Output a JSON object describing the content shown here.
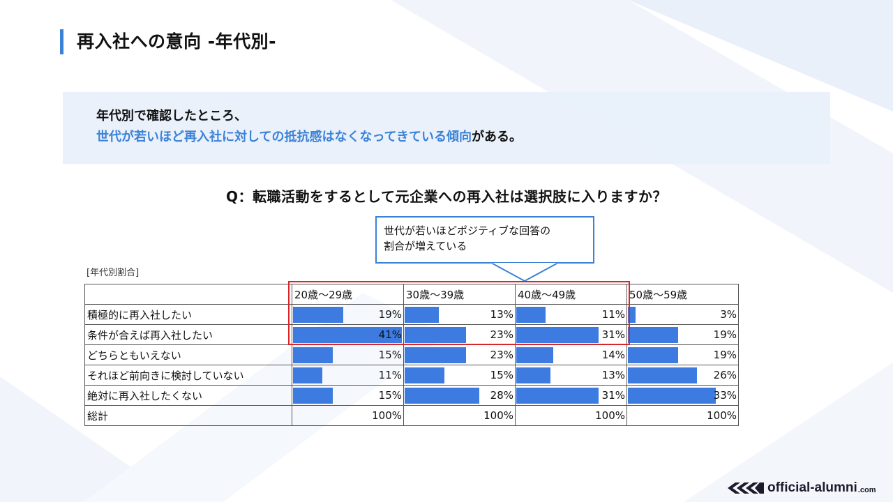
{
  "title": "再入社への意向 -年代別-",
  "summary": {
    "line1": "年代別で確認したところ、",
    "line2_highlight": "世代が若いほど再入社に対しての抵抗感はなくなってきている傾向",
    "line2_tail": "がある。"
  },
  "question": "Q：転職活動をするとして元企業への再入社は選択肢に入りますか？",
  "callout": {
    "line1": "世代が若いほどポジティブな回答の",
    "line2": "割合が増えている"
  },
  "table_caption": "[年代別割合]",
  "logo": {
    "text": "official-alumni",
    "suffix": ".com"
  },
  "colors": {
    "accent": "#3b82d6",
    "bar": "#3d7be0",
    "highlight_border": "#d9262b"
  },
  "chart_data": {
    "type": "table",
    "columns": [
      "20歳〜29歳",
      "30歳〜39歳",
      "40歳〜49歳",
      "50歳〜59歳"
    ],
    "rows": [
      {
        "label": "積極的に再入社したい",
        "values": [
          19,
          13,
          11,
          3
        ],
        "labels": [
          "19%",
          "13%",
          "11%",
          "3%"
        ]
      },
      {
        "label": "条件が合えば再入社したい",
        "values": [
          41,
          23,
          31,
          19
        ],
        "labels": [
          "41%",
          "23%",
          "31%",
          "19%"
        ]
      },
      {
        "label": "どちらともいえない",
        "values": [
          15,
          23,
          14,
          19
        ],
        "labels": [
          "15%",
          "23%",
          "14%",
          "19%"
        ]
      },
      {
        "label": "それほど前向きに検討していない",
        "values": [
          11,
          15,
          13,
          26
        ],
        "labels": [
          "11%",
          "15%",
          "13%",
          "26%"
        ]
      },
      {
        "label": "絶対に再入社したくない",
        "values": [
          15,
          28,
          31,
          33
        ],
        "labels": [
          "15%",
          "28%",
          "31%",
          "33%"
        ]
      }
    ],
    "total": {
      "label": "総計",
      "labels": [
        "100%",
        "100%",
        "100%",
        "100%"
      ]
    },
    "bar_max": 41,
    "highlighted_columns": [
      "20歳〜29歳",
      "30歳〜39歳",
      "40歳〜49歳"
    ],
    "highlighted_rows": [
      "積極的に再入社したい",
      "条件が合えば再入社したい"
    ]
  }
}
